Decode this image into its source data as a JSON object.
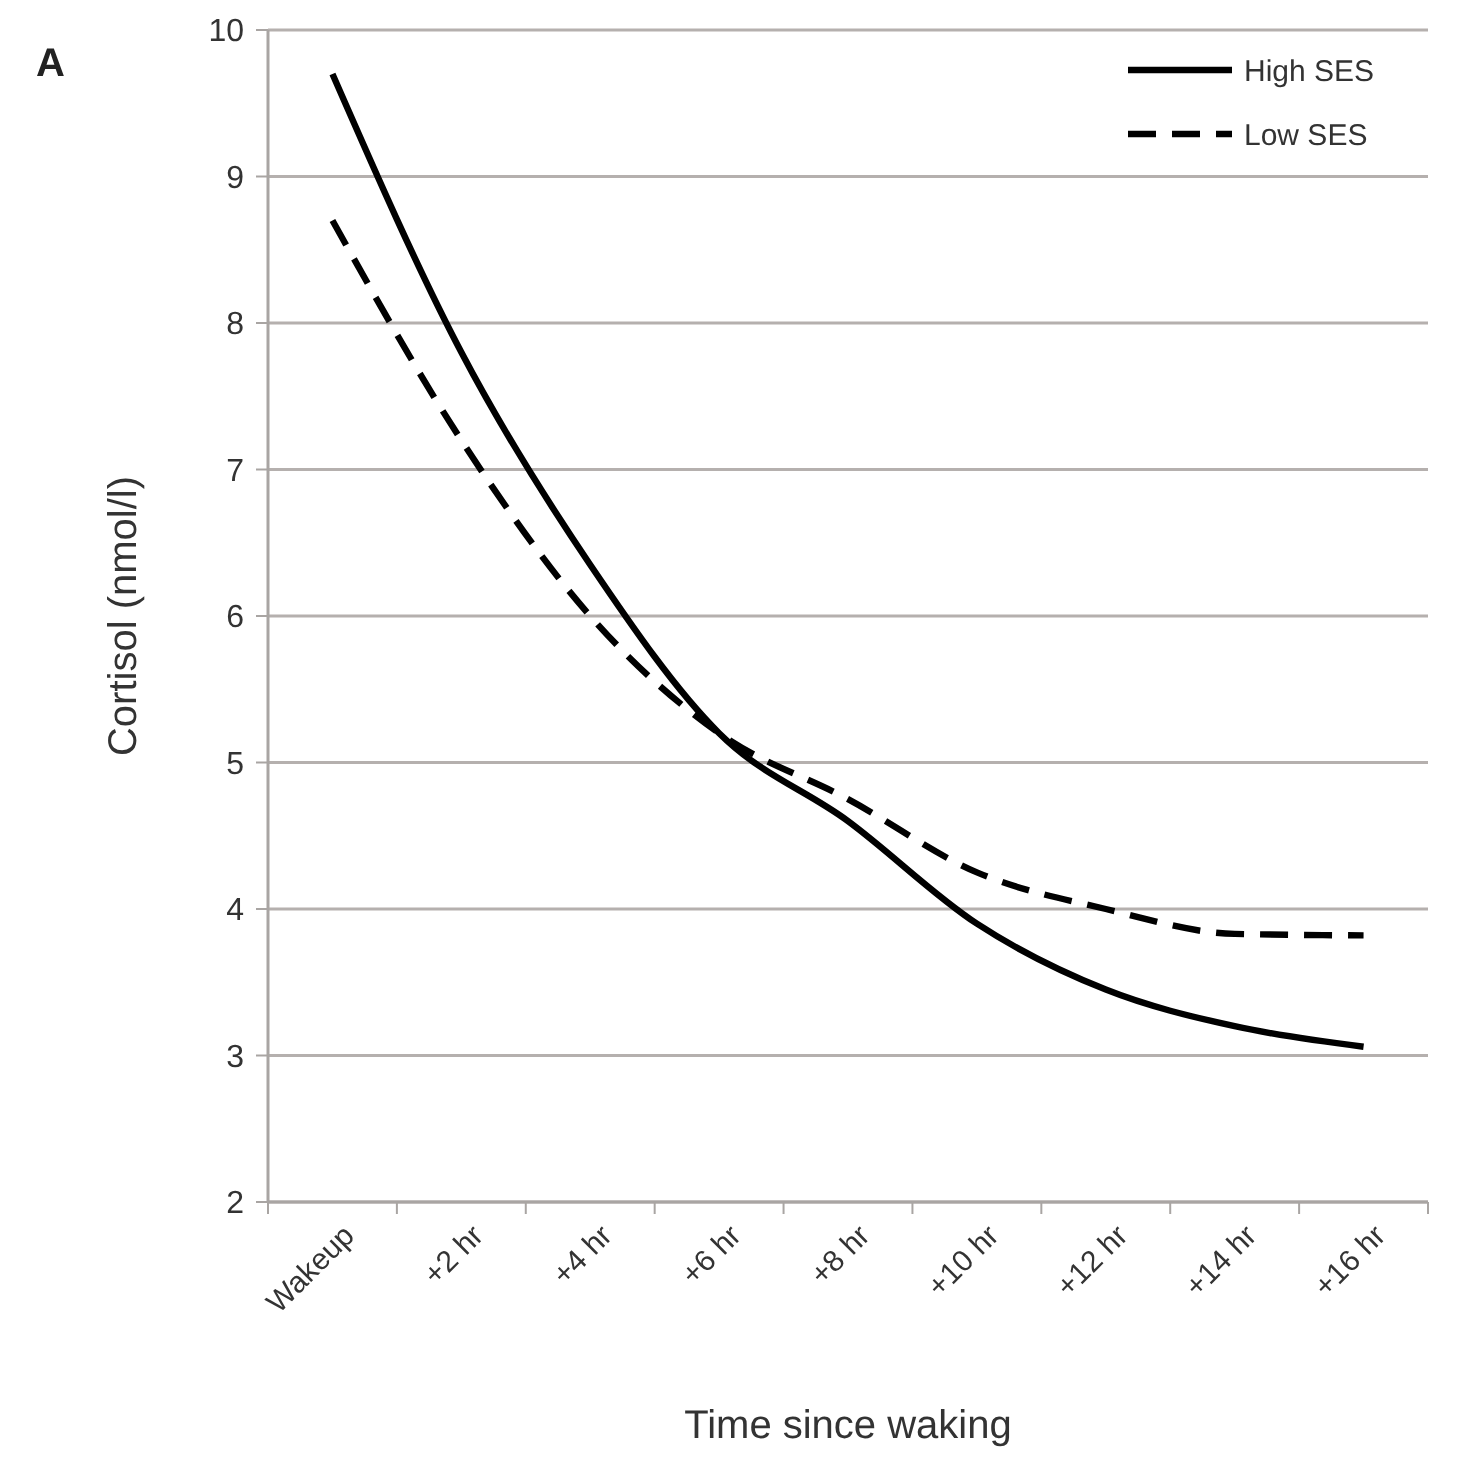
{
  "chart_data": {
    "type": "line",
    "title": "A",
    "xlabel": "Time since waking",
    "ylabel": "Cortisol (nmol/l)",
    "categories": [
      "Wakeup",
      "+2 hr",
      "+4 hr",
      "+6 hr",
      "+8 hr",
      "+10 hr",
      "+12 hr",
      "+14 hr",
      "+16 hr"
    ],
    "series": [
      {
        "name": "High SES",
        "color": "#000000",
        "line_style": "solid",
        "values": [
          9.7,
          7.8,
          6.35,
          5.2,
          4.6,
          3.9,
          3.45,
          3.2,
          3.06
        ]
      },
      {
        "name": "Low SES",
        "color": "#000000",
        "line_style": "dashed",
        "values": [
          8.7,
          7.2,
          6.0,
          5.2,
          4.75,
          4.25,
          4.0,
          3.83,
          3.82
        ]
      }
    ],
    "ylim": [
      2,
      10
    ],
    "yticks": [
      2,
      3,
      4,
      5,
      6,
      7,
      8,
      9,
      10
    ],
    "grid": "y",
    "legend": "top right",
    "marker": "none"
  }
}
